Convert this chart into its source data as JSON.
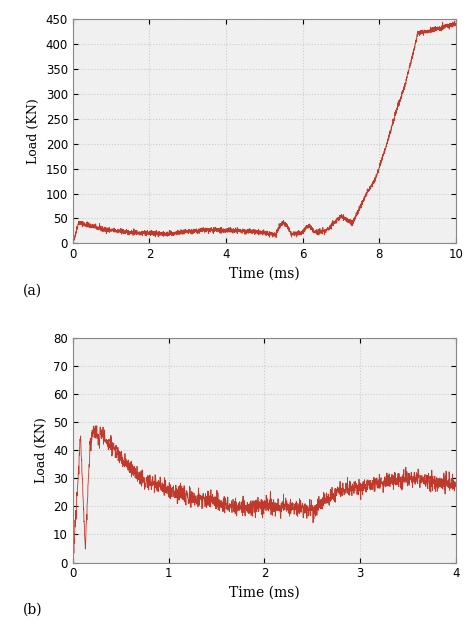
{
  "plot_a": {
    "xlabel": "Time (ms)",
    "ylabel": "Load (KN)",
    "xlim": [
      0,
      10
    ],
    "ylim": [
      0,
      450
    ],
    "xticks": [
      0,
      2,
      4,
      6,
      8,
      10
    ],
    "yticks": [
      0,
      50,
      100,
      150,
      200,
      250,
      300,
      350,
      400,
      450
    ],
    "label": "(a)",
    "line_color": "#c0392b"
  },
  "plot_b": {
    "xlabel": "Time (ms)",
    "ylabel": "Load (KN)",
    "xlim": [
      0,
      4
    ],
    "ylim": [
      0,
      80
    ],
    "xticks": [
      0,
      1,
      2,
      3,
      4
    ],
    "yticks": [
      0,
      10,
      20,
      30,
      40,
      50,
      60,
      70,
      80
    ],
    "label": "(b)",
    "line_color": "#c0392b"
  },
  "background_color": "#ffffff",
  "plot_bg_color": "#f0f0f0",
  "grid_color": "#cccccc",
  "spine_color": "#888888"
}
